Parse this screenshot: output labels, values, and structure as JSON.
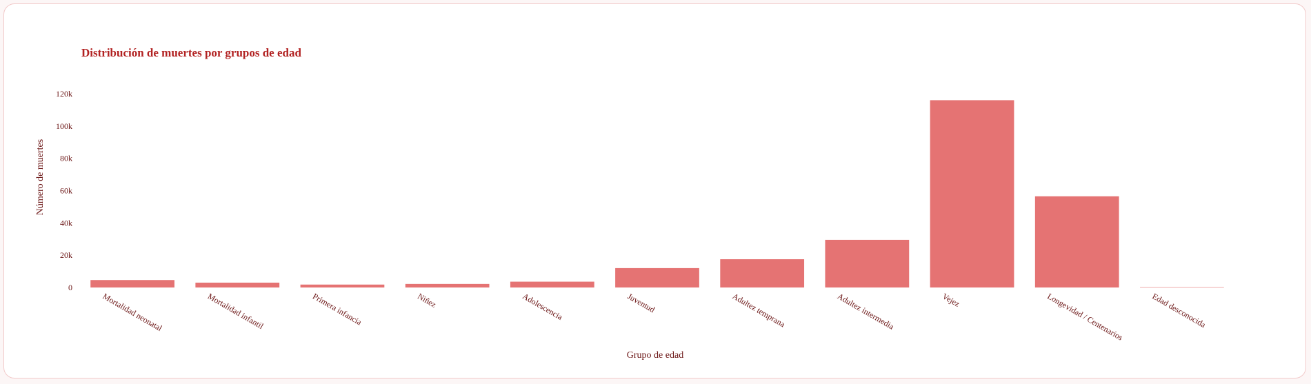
{
  "chart_data": {
    "type": "bar",
    "title": "Distribución de muertes por grupos de edad",
    "xlabel": "Grupo de edad",
    "ylabel": "Número de muertes",
    "categories": [
      "Mortalidad neonatal",
      "Mortalidad infantil",
      "Primera infancia",
      "Niñez",
      "Adolescencia",
      "Juventud",
      "Adultez temprana",
      "Adultez intermedia",
      "Vejez",
      "Longevidad / Centenarios",
      "Edad desconocida"
    ],
    "values": [
      4600,
      3000,
      1800,
      2200,
      3600,
      12000,
      17500,
      29500,
      116000,
      56500,
      200
    ],
    "yticks": [
      {
        "value": 0,
        "label": "0"
      },
      {
        "value": 20000,
        "label": "20k"
      },
      {
        "value": 40000,
        "label": "40k"
      },
      {
        "value": 60000,
        "label": "60k"
      },
      {
        "value": 80000,
        "label": "80k"
      },
      {
        "value": 100000,
        "label": "100k"
      },
      {
        "value": 120000,
        "label": "120k"
      }
    ],
    "ylim": [
      0,
      120000
    ],
    "grid": false,
    "colors": {
      "bar": "#e57373",
      "title": "#b22222",
      "text": "#6b1515"
    }
  }
}
